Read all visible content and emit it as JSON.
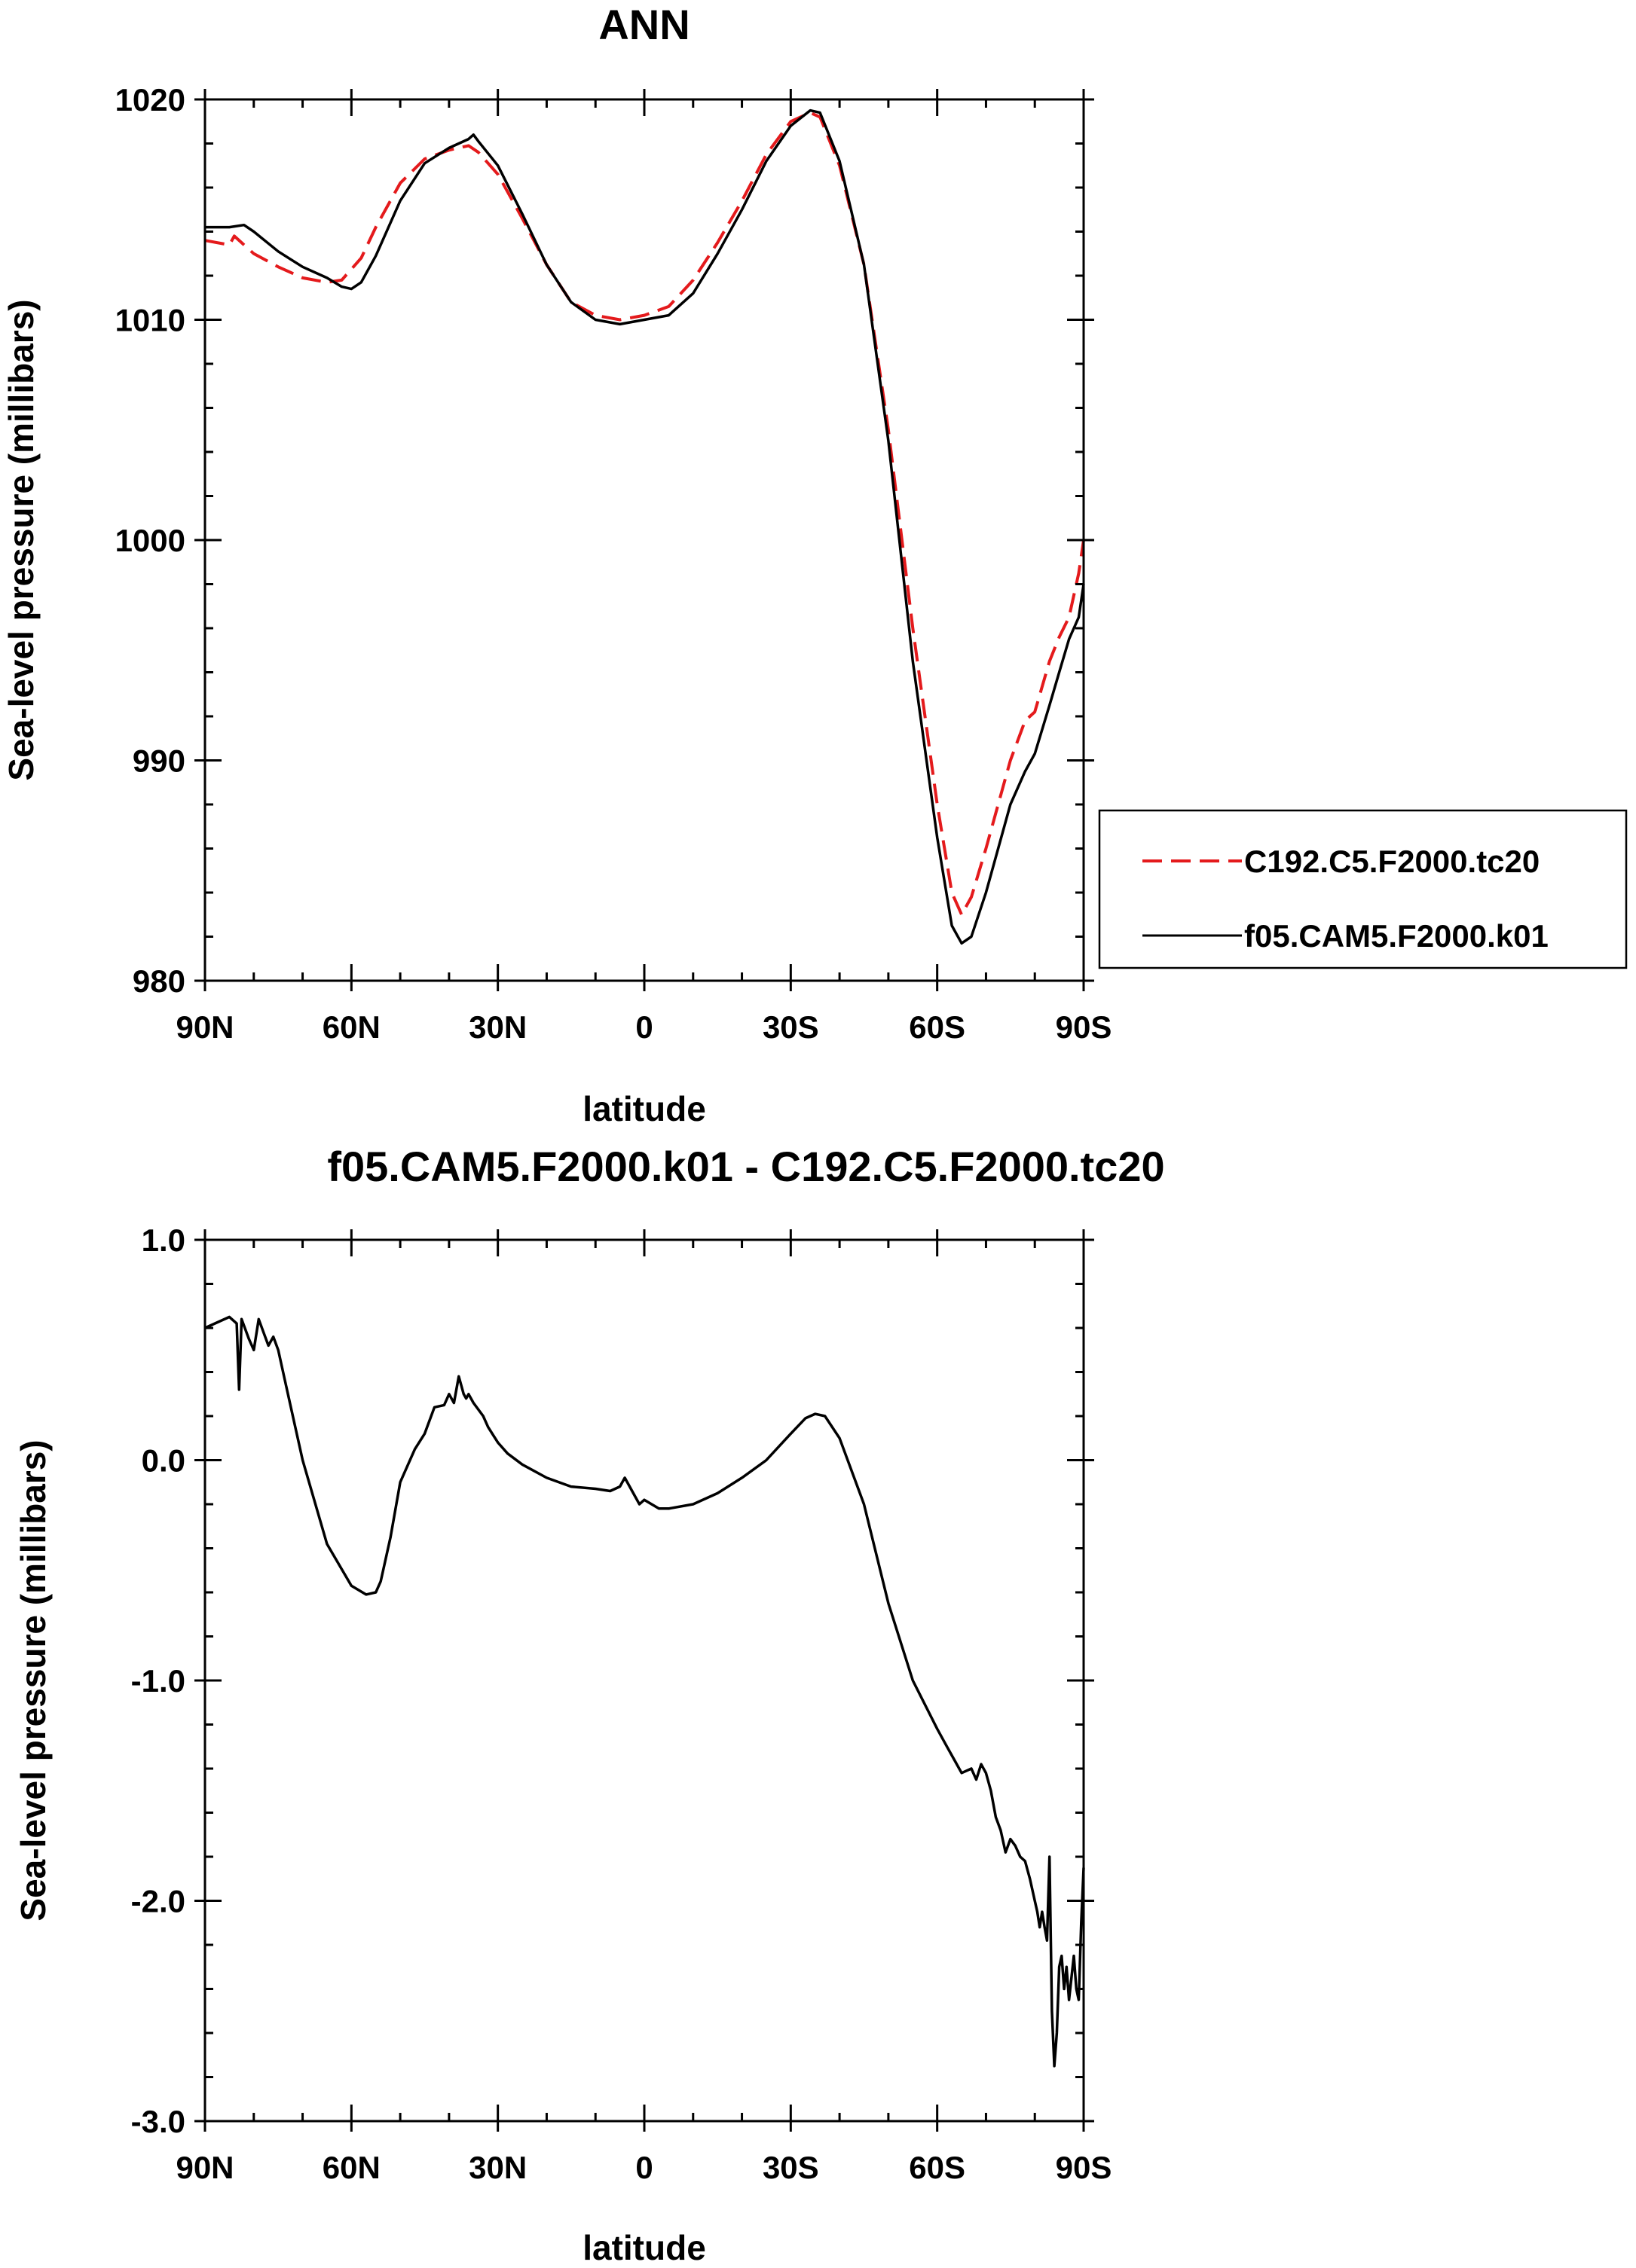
{
  "chart_data": [
    {
      "type": "line",
      "title": "ANN",
      "xlabel": "latitude",
      "ylabel": "Sea-level pressure (millibars)",
      "xlim": [
        90,
        -90
      ],
      "ylim": [
        980,
        1020
      ],
      "x_ticks": [
        90,
        60,
        30,
        0,
        -30,
        -60,
        -90
      ],
      "x_tick_labels": [
        "90N",
        "60N",
        "30N",
        "0",
        "30S",
        "60S",
        "90S"
      ],
      "y_ticks": [
        980,
        990,
        1000,
        1010,
        1020
      ],
      "y_tick_labels": [
        "980",
        "990",
        "1000",
        "1010",
        "1020"
      ],
      "grid": false,
      "legend_position": "right",
      "series": [
        {
          "name": "C192.C5.F2000.tc20",
          "color": "#e41a1c",
          "dash": "dashed",
          "x": [
            90,
            85,
            84,
            80,
            75,
            70,
            65,
            62,
            58,
            55,
            50,
            45,
            40,
            36,
            34,
            30,
            25,
            20,
            15,
            10,
            5,
            0,
            -5,
            -10,
            -15,
            -20,
            -25,
            -30,
            -34,
            -36,
            -40,
            -45,
            -50,
            -55,
            -60,
            -63,
            -65,
            -67,
            -70,
            -75,
            -78,
            -80,
            -83,
            -85,
            -87,
            -89,
            -90
          ],
          "y": [
            1013.6,
            1013.4,
            1013.8,
            1013.0,
            1012.4,
            1011.9,
            1011.7,
            1011.8,
            1012.8,
            1014.2,
            1016.2,
            1017.3,
            1017.7,
            1017.9,
            1017.6,
            1016.6,
            1014.6,
            1012.5,
            1010.8,
            1010.2,
            1010.0,
            1010.2,
            1010.6,
            1011.8,
            1013.5,
            1015.4,
            1017.5,
            1019.0,
            1019.4,
            1019.2,
            1017.0,
            1012.5,
            1005.0,
            996.0,
            988.0,
            984.0,
            983.0,
            983.8,
            986.0,
            990.0,
            991.8,
            992.2,
            994.5,
            995.6,
            996.5,
            998.5,
            1000.0
          ]
        },
        {
          "name": "f05.CAM5.F2000.k01",
          "color": "#000000",
          "dash": "solid",
          "x": [
            90,
            85,
            82,
            80,
            75,
            70,
            65,
            62,
            60,
            58,
            55,
            50,
            45,
            40,
            36,
            35,
            34,
            30,
            25,
            20,
            15,
            10,
            5,
            0,
            -5,
            -10,
            -15,
            -20,
            -25,
            -30,
            -34,
            -36,
            -40,
            -45,
            -50,
            -55,
            -60,
            -63,
            -65,
            -67,
            -70,
            -75,
            -78,
            -80,
            -83,
            -85,
            -87,
            -89,
            -90
          ],
          "y": [
            1014.2,
            1014.2,
            1014.3,
            1014.0,
            1013.1,
            1012.4,
            1011.9,
            1011.5,
            1011.4,
            1011.7,
            1012.9,
            1015.4,
            1017.1,
            1017.8,
            1018.2,
            1018.4,
            1018.1,
            1017.0,
            1014.8,
            1012.5,
            1010.8,
            1010.0,
            1009.8,
            1010.0,
            1010.2,
            1011.2,
            1013.0,
            1015.0,
            1017.2,
            1018.8,
            1019.5,
            1019.4,
            1017.2,
            1012.5,
            1004.5,
            994.5,
            986.5,
            982.5,
            981.7,
            982.0,
            984.0,
            988.0,
            989.5,
            990.3,
            992.5,
            994.0,
            995.5,
            996.5,
            998.0
          ]
        }
      ]
    },
    {
      "type": "line",
      "title": "f05.CAM5.F2000.k01 - C192.C5.F2000.tc20",
      "xlabel": "latitude",
      "ylabel": "Sea-level pressure (millibars)",
      "xlim": [
        90,
        -90
      ],
      "ylim": [
        -3.0,
        1.0
      ],
      "x_ticks": [
        90,
        60,
        30,
        0,
        -30,
        -60,
        -90
      ],
      "x_tick_labels": [
        "90N",
        "60N",
        "30N",
        "0",
        "30S",
        "60S",
        "90S"
      ],
      "y_ticks": [
        -3.0,
        -2.0,
        -1.0,
        0.0,
        1.0
      ],
      "y_tick_labels": [
        "-3.0",
        "-2.0",
        "-1.0",
        "0.0",
        "1.0"
      ],
      "grid": false,
      "series": [
        {
          "color": "#000000",
          "dash": "solid",
          "x": [
            90,
            88,
            85,
            83.5,
            83,
            82.5,
            81,
            80,
            79,
            78,
            77,
            76,
            75,
            73,
            70,
            65,
            60,
            57,
            55,
            54,
            52,
            50,
            47,
            45,
            43,
            41,
            40,
            39,
            38,
            37,
            36.5,
            36,
            35,
            33,
            32,
            30,
            28,
            25,
            20,
            15,
            10,
            7,
            5,
            4,
            3,
            1,
            0,
            -3,
            -5,
            -10,
            -15,
            -20,
            -25,
            -30,
            -33,
            -35,
            -37,
            -40,
            -45,
            -50,
            -55,
            -60,
            -62,
            -65,
            -67,
            -68,
            -69,
            -70,
            -71,
            -72,
            -73,
            -74,
            -75,
            -76,
            -77,
            -78,
            -79,
            -80,
            -80.5,
            -81,
            -81.5,
            -82,
            -82.5,
            -83,
            -83.5,
            -84,
            -84.5,
            -85,
            -85.5,
            -86,
            -86.5,
            -87,
            -87.5,
            -88,
            -88.5,
            -89,
            -89.5,
            -90
          ],
          "y": [
            0.6,
            0.62,
            0.65,
            0.62,
            0.32,
            0.64,
            0.55,
            0.5,
            0.64,
            0.58,
            0.52,
            0.56,
            0.5,
            0.3,
            0.0,
            -0.38,
            -0.57,
            -0.61,
            -0.6,
            -0.55,
            -0.35,
            -0.1,
            0.05,
            0.12,
            0.24,
            0.25,
            0.3,
            0.26,
            0.38,
            0.3,
            0.28,
            0.3,
            0.26,
            0.2,
            0.15,
            0.08,
            0.03,
            -0.02,
            -0.08,
            -0.12,
            -0.13,
            -0.14,
            -0.12,
            -0.08,
            -0.12,
            -0.2,
            -0.18,
            -0.22,
            -0.22,
            -0.2,
            -0.15,
            -0.08,
            0.0,
            0.12,
            0.19,
            0.21,
            0.2,
            0.1,
            -0.2,
            -0.65,
            -1.0,
            -1.22,
            -1.3,
            -1.42,
            -1.4,
            -1.45,
            -1.38,
            -1.42,
            -1.5,
            -1.62,
            -1.68,
            -1.78,
            -1.72,
            -1.75,
            -1.8,
            -1.82,
            -1.9,
            -2.0,
            -2.05,
            -2.12,
            -2.05,
            -2.12,
            -2.18,
            -1.8,
            -2.5,
            -2.75,
            -2.6,
            -2.3,
            -2.25,
            -2.4,
            -2.3,
            -2.45,
            -2.35,
            -2.25,
            -2.4,
            -2.45,
            -2.1,
            -1.85
          ]
        }
      ]
    }
  ]
}
